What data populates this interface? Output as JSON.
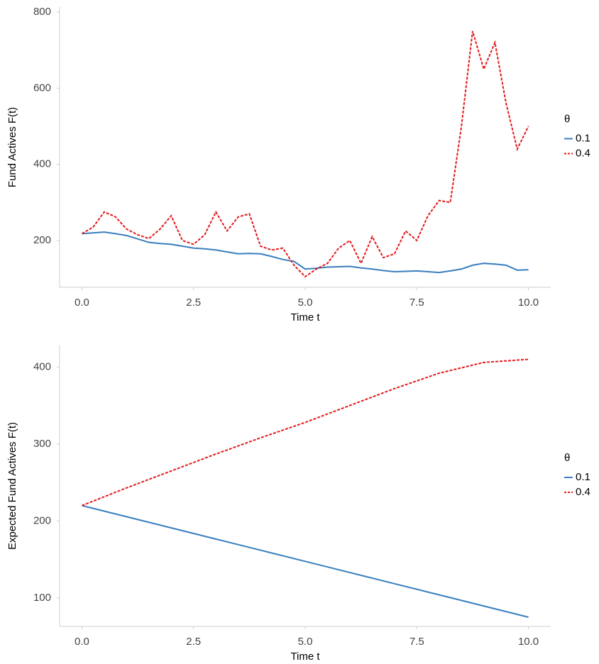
{
  "chart_data": [
    {
      "type": "line",
      "xlabel": "Time t",
      "ylabel": "Fund Actives F(t)",
      "legend_title": "θ",
      "legend": "right",
      "xlim": [
        -0.5,
        10.5
      ],
      "ylim": [
        77,
        813
      ],
      "xticks": [
        {
          "value": 0,
          "label": "0.0"
        },
        2.5,
        {
          "value": 5,
          "label": "5.0"
        },
        7.5,
        {
          "value": 10,
          "label": "10.0"
        }
      ],
      "yticks": [
        200,
        400,
        600,
        800
      ],
      "x": [
        0,
        0.25,
        0.5,
        0.75,
        1,
        1.25,
        1.5,
        1.75,
        2,
        2.25,
        2.5,
        2.75,
        3,
        3.25,
        3.5,
        3.75,
        4,
        4.25,
        4.5,
        4.75,
        5,
        5.25,
        5.5,
        5.75,
        6,
        6.25,
        6.5,
        6.75,
        7,
        7.25,
        7.5,
        7.75,
        8,
        8.25,
        8.5,
        8.75,
        9,
        9.25,
        9.5,
        9.75,
        10
      ],
      "series": [
        {
          "name": "0.1",
          "color": "#3a7ebf",
          "dash": "solid",
          "values": [
            218,
            220,
            222,
            218,
            213,
            204,
            195,
            192,
            190,
            185,
            180,
            178,
            175,
            170,
            165,
            166,
            165,
            158,
            150,
            145,
            125,
            127,
            130,
            131,
            132,
            128,
            125,
            121,
            118,
            119,
            120,
            118,
            116,
            120,
            125,
            135,
            140,
            138,
            135,
            122,
            123
          ]
        },
        {
          "name": "0.4",
          "color": "#e41a1c",
          "dash": "dashed",
          "values": [
            218,
            235,
            275,
            262,
            230,
            215,
            205,
            230,
            265,
            200,
            190,
            215,
            275,
            225,
            262,
            270,
            185,
            175,
            180,
            135,
            105,
            125,
            140,
            180,
            200,
            140,
            210,
            155,
            165,
            225,
            200,
            265,
            305,
            300,
            500,
            750,
            650,
            720,
            560,
            440,
            500
          ]
        }
      ]
    },
    {
      "type": "line",
      "xlabel": "Time t",
      "ylabel": "Expected Fund Actives F(t)",
      "legend_title": "θ",
      "legend": "right",
      "xlim": [
        -0.5,
        10.5
      ],
      "ylim": [
        63,
        428
      ],
      "xticks": [
        {
          "value": 0,
          "label": "0.0"
        },
        2.5,
        {
          "value": 5,
          "label": "5.0"
        },
        7.5,
        {
          "value": 10,
          "label": "10.0"
        }
      ],
      "yticks": [
        100,
        200,
        300,
        400
      ],
      "x": [
        0,
        1,
        2,
        3,
        4,
        5,
        6,
        7,
        8,
        9,
        10
      ],
      "series": [
        {
          "name": "0.1",
          "color": "#3a7ebf",
          "dash": "solid",
          "values": [
            220,
            205.5,
            191,
            176.5,
            162,
            147.5,
            133,
            118.5,
            104,
            89.5,
            75
          ]
        },
        {
          "name": "0.4",
          "color": "#e41a1c",
          "dash": "dashed",
          "values": [
            220,
            243,
            265,
            287,
            308,
            328,
            350,
            372,
            392,
            406,
            410
          ]
        }
      ]
    }
  ]
}
